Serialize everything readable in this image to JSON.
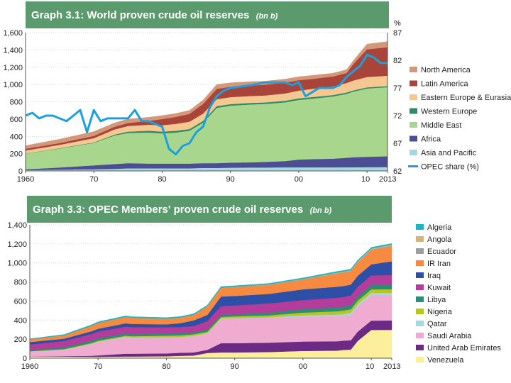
{
  "chart_data": [
    {
      "type": "area",
      "title": "Graph 3.1: World proven crude oil reserves",
      "unit": "(bn b)",
      "ylabel_right": "%",
      "ylim": [
        0,
        1600
      ],
      "y_ticks": [
        "0",
        "200",
        "400",
        "600",
        "800",
        "1,000",
        "1,200",
        "1,400",
        "1,600"
      ],
      "y2lim": [
        62,
        87
      ],
      "y2_ticks": [
        "62",
        "67",
        "72",
        "77",
        "82",
        "87"
      ],
      "x": [
        1960,
        1965,
        1970,
        1973,
        1975,
        1978,
        1980,
        1982,
        1984,
        1986,
        1988,
        1990,
        1993,
        1995,
        1998,
        2000,
        2002,
        2005,
        2007,
        2008,
        2010,
        2013
      ],
      "x_ticks": [
        "1960",
        "70",
        "80",
        "90",
        "00",
        "10",
        "2013"
      ],
      "series": [
        {
          "name": "Asia and Pacific",
          "color": "#a4d8e0",
          "values": [
            10,
            15,
            20,
            25,
            30,
            30,
            30,
            30,
            30,
            35,
            35,
            38,
            40,
            40,
            42,
            42,
            42,
            42,
            43,
            43,
            44,
            45
          ]
        },
        {
          "name": "Africa",
          "color": "#4d4d94",
          "values": [
            10,
            25,
            45,
            55,
            60,
            55,
            55,
            55,
            55,
            55,
            55,
            58,
            60,
            65,
            72,
            90,
            95,
            100,
            110,
            115,
            120,
            125
          ]
        },
        {
          "name": "Middle East",
          "color": "#a8d68c",
          "values": [
            180,
            220,
            260,
            330,
            350,
            360,
            350,
            360,
            380,
            470,
            640,
            660,
            670,
            670,
            680,
            690,
            700,
            720,
            740,
            760,
            790,
            800
          ]
        },
        {
          "name": "Western Europe",
          "color": "#2e8b66",
          "values": [
            2,
            3,
            5,
            10,
            15,
            20,
            20,
            20,
            20,
            20,
            20,
            18,
            18,
            18,
            18,
            18,
            18,
            16,
            15,
            14,
            13,
            12
          ]
        },
        {
          "name": "Eastern Europe & Eurasia",
          "color": "#f5c891",
          "values": [
            35,
            40,
            50,
            60,
            65,
            70,
            75,
            80,
            85,
            85,
            80,
            80,
            80,
            80,
            85,
            90,
            95,
            100,
            110,
            115,
            120,
            120
          ]
        },
        {
          "name": "Latin America",
          "color": "#a8443a",
          "values": [
            20,
            20,
            25,
            30,
            35,
            45,
            70,
            80,
            90,
            110,
            120,
            120,
            120,
            125,
            125,
            120,
            115,
            115,
            115,
            190,
            320,
            330
          ]
        },
        {
          "name": "North America",
          "color": "#d4977a",
          "values": [
            35,
            45,
            50,
            45,
            45,
            40,
            40,
            40,
            40,
            45,
            50,
            45,
            45,
            40,
            40,
            40,
            40,
            38,
            38,
            40,
            60,
            65
          ]
        }
      ],
      "line": {
        "name": "OPEC share (%)",
        "color": "#1aa0dc",
        "x": [
          1960,
          1961,
          1962,
          1963,
          1964,
          1965,
          1966,
          1967,
          1968,
          1969,
          1970,
          1971,
          1972,
          1973,
          1974,
          1975,
          1976,
          1977,
          1978,
          1979,
          1980,
          1981,
          1982,
          1983,
          1984,
          1985,
          1986,
          1987,
          1988,
          1989,
          1990,
          1993,
          1995,
          1998,
          1999,
          2000,
          2001,
          2003,
          2005,
          2006,
          2007,
          2008,
          2009,
          2010,
          2011,
          2012,
          2013
        ],
        "values": [
          72,
          72.5,
          71.5,
          72,
          72,
          71.5,
          71,
          72,
          73,
          69,
          73,
          71,
          71.5,
          71.5,
          71.5,
          71.5,
          73,
          71,
          71,
          70.5,
          70,
          66,
          65,
          66.5,
          67,
          69,
          70,
          73.5,
          75.5,
          76.5,
          77,
          77.5,
          78,
          78,
          77.5,
          78,
          75.5,
          77,
          77,
          77.5,
          79,
          80,
          81,
          83,
          82.5,
          81.5,
          81.5
        ]
      }
    },
    {
      "type": "area",
      "title": "Graph 3.3: OPEC Members' proven crude oil reserves",
      "unit": "(bn b)",
      "ylim": [
        0,
        1400
      ],
      "y_ticks": [
        "0",
        "200",
        "400",
        "600",
        "800",
        "1,000",
        "1,200",
        "1,400"
      ],
      "x": [
        1960,
        1965,
        1969,
        1970,
        1974,
        1975,
        1980,
        1982,
        1984,
        1986,
        1988,
        1990,
        1995,
        2000,
        2005,
        2006,
        2007,
        2008,
        2010,
        2013
      ],
      "x_ticks": [
        "1960",
        "70",
        "80",
        "90",
        "00",
        "10",
        "2013"
      ],
      "series": [
        {
          "name": "Venezuela",
          "color": "#fbef9c",
          "values": [
            18,
            17,
            15,
            14,
            18,
            18,
            20,
            25,
            28,
            55,
            60,
            60,
            65,
            77,
            80,
            87,
            90,
            180,
            297,
            298
          ]
        },
        {
          "name": "United Arab Emirates",
          "color": "#6b2a84",
          "values": [
            0,
            5,
            10,
            15,
            30,
            30,
            30,
            32,
            32,
            33,
            98,
            98,
            98,
            98,
            98,
            98,
            98,
            98,
            98,
            98
          ]
        },
        {
          "name": "Saudi Arabia",
          "color": "#f0acd0",
          "values": [
            50,
            65,
            120,
            140,
            170,
            165,
            165,
            162,
            170,
            170,
            255,
            260,
            261,
            262,
            264,
            264,
            264,
            264,
            265,
            266
          ]
        },
        {
          "name": "Qatar",
          "color": "#a6d8e2",
          "values": [
            3,
            3,
            4,
            5,
            6,
            6,
            5,
            4,
            4,
            4,
            4,
            4,
            5,
            13,
            15,
            15,
            25,
            25,
            25,
            25
          ]
        },
        {
          "name": "Nigeria",
          "color": "#b6c81e",
          "values": [
            3,
            5,
            10,
            10,
            12,
            12,
            17,
            17,
            17,
            16,
            16,
            17,
            21,
            29,
            36,
            37,
            37,
            37,
            37,
            37
          ]
        },
        {
          "name": "Libya",
          "color": "#2e8b76",
          "values": [
            10,
            20,
            25,
            25,
            25,
            25,
            23,
            22,
            21,
            21,
            22,
            23,
            29,
            36,
            41,
            42,
            43,
            44,
            47,
            48
          ]
        },
        {
          "name": "Kuwait",
          "color": "#b43d9c",
          "values": [
            60,
            65,
            70,
            70,
            70,
            70,
            65,
            65,
            65,
            90,
            92,
            92,
            96,
            96,
            101,
            101,
            101,
            101,
            101,
            101
          ]
        },
        {
          "name": "Iraq",
          "color": "#2d4fa6",
          "values": [
            25,
            25,
            28,
            30,
            35,
            34,
            30,
            40,
            60,
            65,
            100,
            100,
            100,
            112,
            115,
            115,
            115,
            115,
            115,
            144
          ]
        },
        {
          "name": "IR Iran",
          "color": "#f58a40",
          "values": [
            30,
            35,
            55,
            60,
            65,
            63,
            58,
            57,
            56,
            90,
            92,
            92,
            93,
            100,
            137,
            138,
            138,
            138,
            150,
            157
          ]
        },
        {
          "name": "Ecuador",
          "color": "#9e9e9e",
          "values": [
            0,
            0,
            1,
            1,
            2,
            2,
            2,
            2,
            2,
            2,
            2,
            2,
            3,
            4,
            4,
            4,
            4,
            4,
            6,
            8
          ]
        },
        {
          "name": "Angola",
          "color": "#d4b47a",
          "values": [
            0,
            0,
            1,
            1,
            1,
            1,
            1,
            1,
            1,
            1,
            1,
            2,
            4,
            5,
            8,
            9,
            9,
            10,
            10,
            10
          ]
        },
        {
          "name": "Algeria",
          "color": "#1fb4c4",
          "values": [
            5,
            8,
            10,
            10,
            10,
            10,
            10,
            10,
            10,
            10,
            10,
            10,
            10,
            11,
            12,
            12,
            12,
            12,
            12,
            12
          ]
        }
      ]
    }
  ]
}
